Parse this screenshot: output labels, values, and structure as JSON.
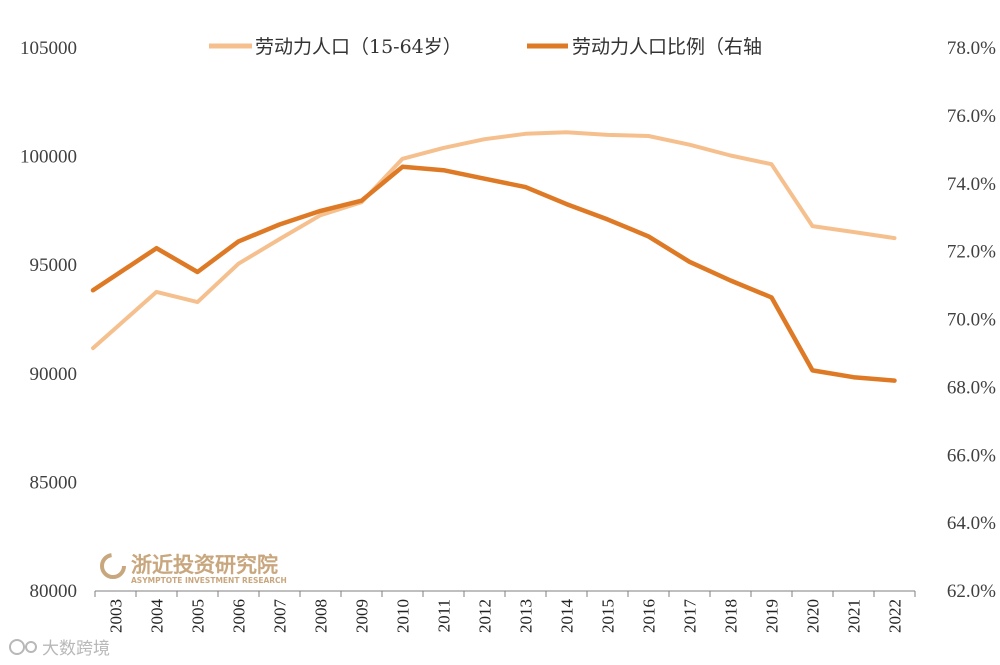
{
  "chart_data": {
    "type": "line",
    "categories": [
      "2003",
      "2004",
      "2005",
      "2006",
      "2007",
      "2008",
      "2009",
      "2010",
      "2011",
      "2012",
      "2013",
      "2014",
      "2015",
      "2016",
      "2017",
      "2018",
      "2019",
      "2020",
      "2021",
      "2022"
    ],
    "series": [
      {
        "name": "劳动力人口（15-64岁）",
        "axis": "left",
        "color": "#f5c08e",
        "values": [
          92100,
          93770,
          93300,
          95070,
          96200,
          97300,
          97900,
          99900,
          100400,
          100800,
          101050,
          101120,
          101000,
          100950,
          100550,
          100050,
          99650,
          96800,
          96530,
          96250
        ]
      },
      {
        "name": "劳动力人口比例（右轴",
        "axis": "right",
        "color": "#de7a26",
        "values": [
          71.3,
          72.1,
          71.4,
          72.3,
          72.8,
          73.2,
          73.5,
          74.5,
          74.4,
          74.15,
          73.9,
          73.4,
          72.95,
          72.45,
          71.7,
          71.15,
          70.65,
          68.5,
          68.3,
          68.2
        ]
      }
    ],
    "left_axis": {
      "min": 80000,
      "max": 105000,
      "ticks": [
        "80000",
        "85000",
        "90000",
        "95000",
        "100000",
        "105000"
      ]
    },
    "right_axis": {
      "min": 62.0,
      "max": 78.0,
      "ticks": [
        "62.0%",
        "64.0%",
        "66.0%",
        "68.0%",
        "70.0%",
        "72.0%",
        "74.0%",
        "76.0%",
        "78.0%"
      ]
    },
    "legend_position": "top",
    "grid": false
  },
  "watermark": {
    "name": "浙近投资研究院",
    "subtitle": "ASYMPTOTE INVESTMENT RESEARCH",
    "source_tag": "大数跨境"
  },
  "colors": {
    "light_series": "#f5c08e",
    "dark_series": "#de7a26",
    "watermark": "#c9a77e"
  }
}
